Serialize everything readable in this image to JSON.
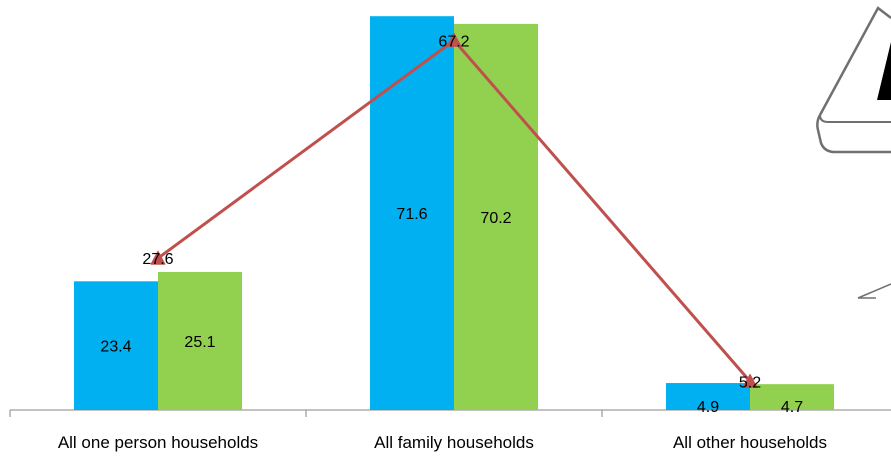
{
  "chart_data": {
    "type": "bar",
    "categories": [
      "All one person households",
      "All family households",
      "All other households"
    ],
    "series": [
      {
        "kind": "bar",
        "color": "#00b0f0",
        "values": [
          23.4,
          71.6,
          4.9
        ]
      },
      {
        "kind": "bar",
        "color": "#92d050",
        "values": [
          25.1,
          70.2,
          4.7
        ]
      },
      {
        "kind": "line",
        "color": "#c0504d",
        "marker": "triangle",
        "values": [
          27.6,
          67.2,
          5.2
        ]
      }
    ],
    "ylim": [
      0,
      72
    ],
    "grid": false,
    "legend": "none",
    "xlabel": "",
    "ylabel": "",
    "title": ""
  }
}
